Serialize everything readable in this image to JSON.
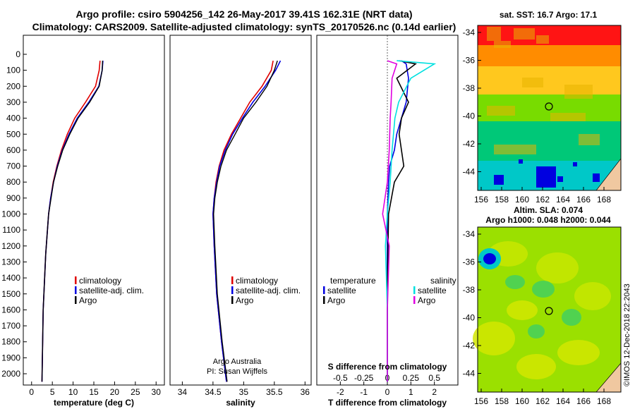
{
  "titles": {
    "line1": "Argo profile: csiro 5904256_142 26-May-2017 39.41S 162.31E (NRT data)",
    "line2": "Climatology: CARS2009. Satellite-adjusted climatology: synTS_20170526.nc (0.14d earlier)"
  },
  "credit": {
    "line1": "Argo Australia",
    "line2": "PI: Susan Wijffels"
  },
  "stamp": "©IMOS 12-Dec-2018 22:2043",
  "colors": {
    "climatology": "#e00000",
    "satellite": "#0000e0",
    "argo": "#000000",
    "sat_s": "#00e0e0",
    "argo_s": "#e000e0"
  },
  "chart_data": [
    {
      "type": "line",
      "id": "temperature",
      "xlabel": "temperature (deg C)",
      "ylabel": "",
      "xlim": [
        -2,
        32
      ],
      "ylim": [
        0,
        2070
      ],
      "xticks": [
        "0",
        "5",
        "10",
        "15",
        "20",
        "25",
        "30"
      ],
      "yticks": [
        "0",
        "100",
        "200",
        "300",
        "400",
        "500",
        "600",
        "700",
        "800",
        "900",
        "1000",
        "1100",
        "1200",
        "1300",
        "1400",
        "1500",
        "1600",
        "1700",
        "1800",
        "1900",
        "2000"
      ],
      "legend": [
        "climatology",
        "satellite-adj. clim.",
        "Argo"
      ],
      "series": [
        {
          "name": "climatology",
          "x": [
            16.5,
            16.3,
            15.4,
            13.0,
            10.4,
            8.6,
            7.2,
            6.1,
            5.2,
            4.6,
            4.1,
            3.4,
            2.8,
            2.5
          ],
          "y": [
            40,
            100,
            200,
            300,
            400,
            500,
            600,
            700,
            800,
            900,
            1000,
            1250,
            1600,
            2050
          ]
        },
        {
          "name": "satellite-adj. clim.",
          "x": [
            17.2,
            17.0,
            16.2,
            13.8,
            11.0,
            9.0,
            7.4,
            6.2,
            5.3,
            4.6,
            4.1,
            3.4,
            2.8,
            2.5
          ],
          "y": [
            40,
            100,
            200,
            300,
            400,
            500,
            600,
            700,
            800,
            900,
            1000,
            1250,
            1600,
            2050
          ]
        },
        {
          "name": "Argo",
          "x": [
            17.1,
            17.0,
            16.3,
            14.0,
            11.2,
            9.2,
            7.5,
            6.3,
            5.3,
            4.7,
            4.1,
            3.4,
            2.8,
            2.5
          ],
          "y": [
            40,
            100,
            200,
            300,
            400,
            500,
            600,
            700,
            800,
            900,
            1000,
            1250,
            1600,
            2050
          ]
        }
      ]
    },
    {
      "type": "line",
      "id": "salinity",
      "xlabel": "salinity",
      "xlim": [
        33.8,
        36.1
      ],
      "ylim": [
        0,
        2070
      ],
      "xticks": [
        "34",
        "34.5",
        "35",
        "35.5",
        "36"
      ],
      "legend": [
        "climatology",
        "satellite-adj. clim.",
        "Argo"
      ],
      "series": [
        {
          "name": "climatology",
          "x": [
            35.48,
            35.45,
            35.3,
            35.1,
            34.95,
            34.8,
            34.68,
            34.6,
            34.55,
            34.52,
            34.5,
            34.52,
            34.56,
            34.64,
            34.72
          ],
          "y": [
            40,
            100,
            200,
            300,
            400,
            500,
            600,
            700,
            800,
            900,
            1000,
            1200,
            1500,
            1800,
            2050
          ]
        },
        {
          "name": "satellite-adj. clim.",
          "x": [
            35.6,
            35.52,
            35.35,
            35.15,
            34.98,
            34.82,
            34.7,
            34.61,
            34.56,
            34.52,
            34.5,
            34.52,
            34.56,
            34.64,
            34.72
          ],
          "y": [
            40,
            100,
            200,
            300,
            400,
            500,
            600,
            700,
            800,
            900,
            1000,
            1200,
            1500,
            1800,
            2050
          ]
        },
        {
          "name": "Argo",
          "x": [
            35.55,
            35.5,
            35.38,
            35.2,
            35.0,
            34.86,
            34.72,
            34.63,
            34.57,
            34.53,
            34.51,
            34.53,
            34.57,
            34.65,
            34.73
          ],
          "y": [
            40,
            100,
            200,
            300,
            400,
            500,
            600,
            700,
            800,
            900,
            1000,
            1200,
            1500,
            1800,
            2050
          ]
        }
      ]
    },
    {
      "type": "line",
      "id": "difference",
      "xlabel": "T difference from climatology",
      "xlabel2": "S difference from climatology",
      "xlim": [
        -3,
        3
      ],
      "ylim": [
        0,
        2070
      ],
      "xticks": [
        "-2",
        "-1",
        "0",
        "1",
        "2"
      ],
      "xticks_s": [
        "-0.5",
        "-0.25",
        "0",
        "0.25",
        "0.5"
      ],
      "legend_left_title": "temperature",
      "legend_right_title": "salinity",
      "legend_left": [
        "satellite",
        "Argo"
      ],
      "legend_right": [
        "satellite",
        "Argo"
      ],
      "series": [
        {
          "name": "T satellite",
          "x": [
            0.6,
            0.8,
            0.9,
            0.8,
            0.6,
            0.4,
            0.3,
            0.1,
            0.05,
            0.0,
            0.0,
            0.0
          ],
          "y": [
            40,
            60,
            150,
            300,
            400,
            500,
            600,
            700,
            800,
            1000,
            1500,
            2050
          ]
        },
        {
          "name": "T Argo",
          "x": [
            0.5,
            1.2,
            0.4,
            0.9,
            0.6,
            0.5,
            0.6,
            0.7,
            0.3,
            0.05,
            0.0,
            0.0
          ],
          "y": [
            40,
            60,
            150,
            300,
            400,
            500,
            600,
            700,
            800,
            1000,
            1500,
            2050
          ]
        },
        {
          "name": "S satellite",
          "x": [
            0.1,
            0.5,
            0.25,
            0.12,
            0.08,
            0.05,
            0.03,
            0.0,
            -0.02,
            0.0,
            0.0
          ],
          "y": [
            40,
            60,
            150,
            300,
            400,
            600,
            800,
            1000,
            1200,
            1600,
            2050
          ]
        },
        {
          "name": "S Argo",
          "x": [
            0.0,
            0.1,
            0.05,
            0.04,
            0.03,
            0.02,
            0.0,
            -0.05,
            0.02,
            0.0,
            0.0
          ],
          "y": [
            40,
            60,
            150,
            300,
            400,
            600,
            800,
            1000,
            1200,
            1600,
            2050
          ]
        }
      ]
    },
    {
      "type": "heatmap",
      "id": "sst-map",
      "title": "sat. SST: 16.7 Argo: 17.1",
      "xticks": [
        "156",
        "158",
        "160",
        "162",
        "164",
        "166",
        "168"
      ],
      "yticks": [
        "-34",
        "-36",
        "-38",
        "-40",
        "-42",
        "-44"
      ]
    },
    {
      "type": "heatmap",
      "id": "sla-map",
      "title1": "Altim. SLA: 0.074",
      "title2": "Argo h1000: 0.048 h2000: 0.044",
      "xticks": [
        "156",
        "158",
        "160",
        "162",
        "164",
        "166",
        "168"
      ],
      "yticks": [
        "-34",
        "-36",
        "-38",
        "-40",
        "-42",
        "-44"
      ]
    }
  ]
}
